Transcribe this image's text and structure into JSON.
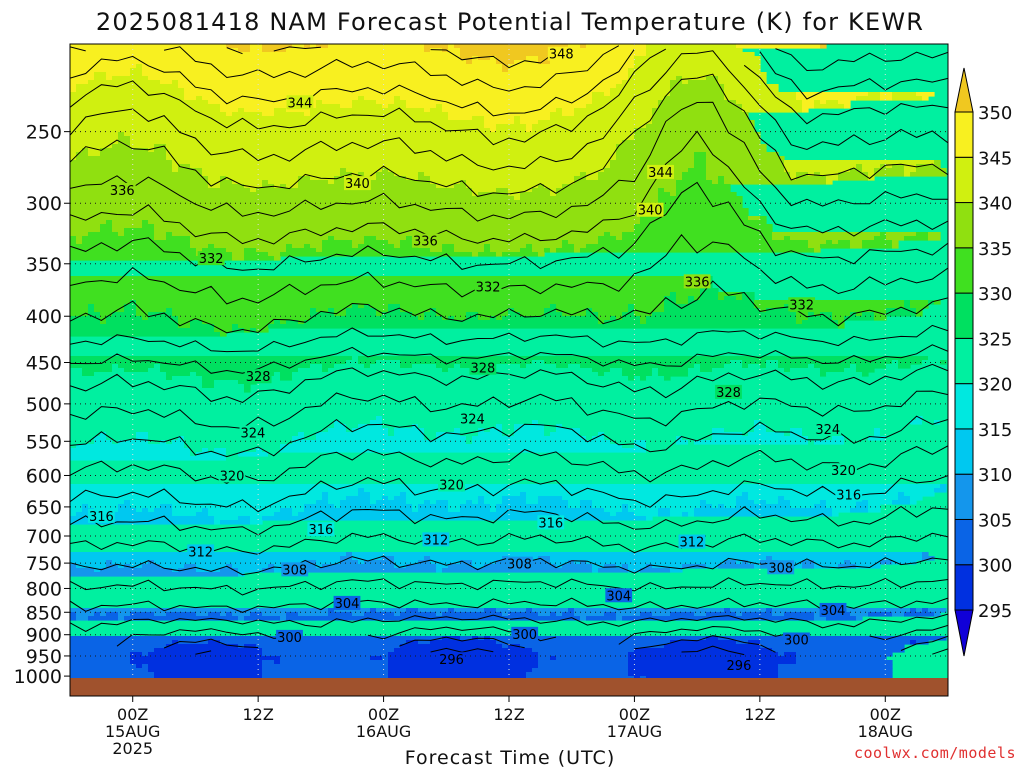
{
  "chart_data": {
    "type": "heatmap",
    "title": "2025081418 NAM Forecast Potential Temperature (K) for KEWR",
    "xlabel": "Forecast Time (UTC)",
    "ylabel": "",
    "variable_units": "K",
    "y_scale": "log-pressure",
    "y_reversed": true,
    "ylim": [
      1010,
      200
    ],
    "pressure_levels": [
      250,
      300,
      350,
      400,
      450,
      500,
      550,
      600,
      650,
      700,
      750,
      800,
      850,
      900,
      950,
      1000
    ],
    "pressure_tick_labels": [
      "250",
      "300",
      "350",
      "400",
      "450",
      "500",
      "550",
      "600",
      "650",
      "700",
      "750",
      "800",
      "850",
      "900",
      "950",
      "1000"
    ],
    "x_unit": "hours since 2025-08-14 18Z",
    "xlim": [
      18,
      102
    ],
    "time_ticks": [
      {
        "hour": 24,
        "line1": "00Z",
        "line2": "15AUG",
        "line3": "2025"
      },
      {
        "hour": 36,
        "line1": "12Z",
        "line2": "",
        "line3": ""
      },
      {
        "hour": 48,
        "line1": "00Z",
        "line2": "16AUG",
        "line3": ""
      },
      {
        "hour": 60,
        "line1": "12Z",
        "line2": "",
        "line3": ""
      },
      {
        "hour": 72,
        "line1": "00Z",
        "line2": "17AUG",
        "line3": ""
      },
      {
        "hour": 84,
        "line1": "12Z",
        "line2": "",
        "line3": ""
      },
      {
        "hour": 96,
        "line1": "00Z",
        "line2": "18AUG",
        "line3": ""
      }
    ],
    "grid": true,
    "colorbar": {
      "position": "right",
      "levels": [
        295,
        300,
        305,
        310,
        315,
        320,
        325,
        330,
        335,
        340,
        345,
        350
      ],
      "labels": [
        "295",
        "300",
        "305",
        "310",
        "315",
        "320",
        "325",
        "330",
        "335",
        "340",
        "345",
        "350"
      ],
      "colors": [
        "#1000d8",
        "#0030e0",
        "#0a64e6",
        "#1496ec",
        "#00c8f0",
        "#00e8e0",
        "#00f0a0",
        "#00e060",
        "#40e020",
        "#90e010",
        "#d0f010",
        "#f8f020",
        "#f0c820"
      ]
    },
    "contour_interval": 2,
    "contour_labels": [
      {
        "value": "348",
        "hour": 65.0,
        "p": 205
      },
      {
        "value": "344",
        "hour": 40.0,
        "p": 232
      },
      {
        "value": "344",
        "hour": 74.5,
        "p": 277
      },
      {
        "value": "340",
        "hour": 45.5,
        "p": 285
      },
      {
        "value": "340",
        "hour": 73.5,
        "p": 305
      },
      {
        "value": "336",
        "hour": 23.0,
        "p": 290
      },
      {
        "value": "336",
        "hour": 52.0,
        "p": 330
      },
      {
        "value": "336",
        "hour": 78.0,
        "p": 366
      },
      {
        "value": "332",
        "hour": 31.5,
        "p": 345
      },
      {
        "value": "332",
        "hour": 58.0,
        "p": 371
      },
      {
        "value": "332",
        "hour": 88.0,
        "p": 388
      },
      {
        "value": "328",
        "hour": 36.0,
        "p": 466
      },
      {
        "value": "328",
        "hour": 57.5,
        "p": 456
      },
      {
        "value": "328",
        "hour": 81.0,
        "p": 485
      },
      {
        "value": "324",
        "hour": 35.5,
        "p": 538
      },
      {
        "value": "324",
        "hour": 56.5,
        "p": 519
      },
      {
        "value": "324",
        "hour": 90.5,
        "p": 533
      },
      {
        "value": "320",
        "hour": 33.5,
        "p": 600
      },
      {
        "value": "320",
        "hour": 54.5,
        "p": 614
      },
      {
        "value": "320",
        "hour": 92.0,
        "p": 592
      },
      {
        "value": "316",
        "hour": 21.0,
        "p": 665
      },
      {
        "value": "316",
        "hour": 42.0,
        "p": 688
      },
      {
        "value": "316",
        "hour": 64.0,
        "p": 676
      },
      {
        "value": "316",
        "hour": 92.5,
        "p": 630
      },
      {
        "value": "312",
        "hour": 30.5,
        "p": 728
      },
      {
        "value": "312",
        "hour": 53.0,
        "p": 706
      },
      {
        "value": "312",
        "hour": 77.5,
        "p": 710
      },
      {
        "value": "308",
        "hour": 39.5,
        "p": 762
      },
      {
        "value": "308",
        "hour": 61.0,
        "p": 751
      },
      {
        "value": "308",
        "hour": 86.0,
        "p": 758
      },
      {
        "value": "304",
        "hour": 44.5,
        "p": 830
      },
      {
        "value": "304",
        "hour": 70.5,
        "p": 814
      },
      {
        "value": "304",
        "hour": 91.0,
        "p": 845
      },
      {
        "value": "300",
        "hour": 39.0,
        "p": 905
      },
      {
        "value": "300",
        "hour": 61.5,
        "p": 898
      },
      {
        "value": "300",
        "hour": 87.5,
        "p": 911
      },
      {
        "value": "296",
        "hour": 54.5,
        "p": 958
      },
      {
        "value": "296",
        "hour": 82.0,
        "p": 972
      }
    ]
  },
  "credit": "coolwx.com/models"
}
